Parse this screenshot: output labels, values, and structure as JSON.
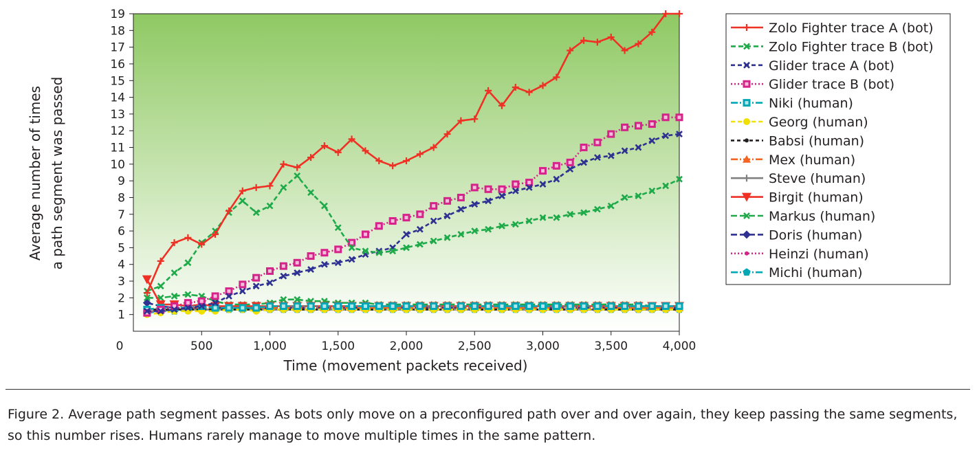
{
  "chart_data": {
    "type": "line",
    "xlabel": "Time (movement packets received)",
    "ylabel": [
      "Average number of times",
      "a path segment was passed"
    ],
    "xlim": [
      0,
      4000
    ],
    "ylim": [
      0,
      19
    ],
    "x_tick_values": [
      500,
      1000,
      1500,
      2000,
      2500,
      3000,
      3500,
      4000
    ],
    "x_tick_labels": [
      "500",
      "1,000",
      "1,500",
      "2,000",
      "2,500",
      "3,000",
      "3,500",
      "4,000"
    ],
    "x_origin_label": "0",
    "y_tick_values": [
      1,
      2,
      3,
      4,
      5,
      6,
      7,
      8,
      9,
      10,
      11,
      12,
      13,
      14,
      15,
      16,
      17,
      18,
      19
    ],
    "legend_position": "right",
    "x": [
      100,
      200,
      300,
      400,
      500,
      600,
      700,
      800,
      900,
      1000,
      1100,
      1200,
      1300,
      1400,
      1500,
      1600,
      1700,
      1800,
      1900,
      2000,
      2100,
      2200,
      2300,
      2400,
      2500,
      2600,
      2700,
      2800,
      2900,
      3000,
      3100,
      3200,
      3300,
      3400,
      3500,
      3600,
      3700,
      3800,
      3900,
      4000
    ],
    "series": [
      {
        "name": "Zolo Fighter trace A (bot)",
        "color": "#ee3124",
        "dash": "",
        "marker": "plus",
        "values": [
          2.3,
          4.2,
          5.3,
          5.6,
          5.2,
          5.8,
          7.2,
          8.4,
          8.6,
          8.7,
          10.0,
          9.8,
          10.4,
          11.1,
          10.7,
          11.5,
          10.8,
          10.2,
          9.9,
          10.2,
          10.6,
          11.0,
          11.8,
          12.6,
          12.7,
          14.4,
          13.5,
          14.6,
          14.3,
          14.7,
          15.2,
          16.8,
          17.4,
          17.3,
          17.6,
          16.8,
          17.2,
          17.9,
          19.0,
          19.0
        ]
      },
      {
        "name": "Zolo Fighter trace B (bot)",
        "color": "#1faa4a",
        "dash": "7,4",
        "marker": "x",
        "values": [
          2.4,
          2.7,
          3.5,
          4.1,
          5.3,
          6.0,
          7.1,
          7.8,
          7.1,
          7.5,
          8.6,
          9.3,
          8.3,
          7.5,
          6.2,
          5.0,
          4.8,
          4.7,
          4.8,
          5.0,
          5.2,
          5.4,
          5.6,
          5.8,
          6.0,
          6.1,
          6.3,
          6.4,
          6.6,
          6.8,
          6.8,
          7.0,
          7.1,
          7.3,
          7.5,
          8.0,
          8.1,
          8.4,
          8.7,
          9.1
        ]
      },
      {
        "name": "Glider trace A (bot)",
        "color": "#2e3192",
        "dash": "6,4",
        "marker": "x",
        "values": [
          1.2,
          1.2,
          1.3,
          1.4,
          1.5,
          1.7,
          2.1,
          2.4,
          2.7,
          2.9,
          3.3,
          3.5,
          3.7,
          4.0,
          4.1,
          4.3,
          4.6,
          4.8,
          5.0,
          5.8,
          6.1,
          6.6,
          6.9,
          7.3,
          7.6,
          7.8,
          8.1,
          8.4,
          8.6,
          8.8,
          9.1,
          9.7,
          10.1,
          10.4,
          10.5,
          10.8,
          11.0,
          11.4,
          11.7,
          11.8
        ]
      },
      {
        "name": "Glider trace B (bot)",
        "color": "#d6238a",
        "dash": "2,3",
        "marker": "square",
        "values": [
          1.1,
          1.3,
          1.5,
          1.7,
          1.8,
          2.1,
          2.4,
          2.8,
          3.2,
          3.6,
          3.9,
          4.1,
          4.5,
          4.7,
          4.9,
          5.3,
          5.8,
          6.3,
          6.6,
          6.8,
          7.0,
          7.5,
          7.8,
          8.0,
          8.6,
          8.5,
          8.5,
          8.8,
          8.9,
          9.6,
          9.9,
          10.1,
          11.0,
          11.3,
          11.8,
          12.2,
          12.3,
          12.4,
          12.8,
          12.8
        ]
      },
      {
        "name": "Niki (human)",
        "color": "#00a8b5",
        "dash": "10,3,2,3",
        "marker": "square",
        "values": [
          1.3,
          1.4,
          1.4,
          1.5,
          1.5,
          1.4,
          1.4,
          1.4,
          1.4,
          1.5,
          1.5,
          1.5,
          1.5,
          1.5,
          1.5,
          1.5,
          1.5,
          1.5,
          1.5,
          1.5,
          1.5,
          1.5,
          1.5,
          1.5,
          1.5,
          1.5,
          1.5,
          1.5,
          1.5,
          1.5,
          1.5,
          1.5,
          1.5,
          1.5,
          1.5,
          1.5,
          1.5,
          1.5,
          1.5,
          1.5
        ]
      },
      {
        "name": "Georg (human)",
        "color": "#f0e000",
        "dash": "6,4",
        "marker": "circle",
        "values": [
          1.0,
          1.1,
          1.2,
          1.2,
          1.2,
          1.2,
          1.3,
          1.3,
          1.2,
          1.3,
          1.3,
          1.3,
          1.3,
          1.3,
          1.3,
          1.3,
          1.3,
          1.3,
          1.3,
          1.3,
          1.3,
          1.3,
          1.3,
          1.3,
          1.3,
          1.3,
          1.3,
          1.3,
          1.3,
          1.3,
          1.3,
          1.3,
          1.3,
          1.3,
          1.3,
          1.3,
          1.3,
          1.3,
          1.3,
          1.3
        ]
      },
      {
        "name": "Babsi (human)",
        "color": "#231f20",
        "dash": "5,4",
        "marker": "dot",
        "values": [
          1.3,
          1.3,
          1.3,
          1.3,
          1.3,
          1.3,
          1.3,
          1.3,
          1.3,
          1.3,
          1.3,
          1.3,
          1.3,
          1.3,
          1.3,
          1.3,
          1.3,
          1.3,
          1.3,
          1.3,
          1.3,
          1.3,
          1.3,
          1.3,
          1.3,
          1.3,
          1.3,
          1.3,
          1.3,
          1.3,
          1.3,
          1.3,
          1.3,
          1.3,
          1.3,
          1.3,
          1.3,
          1.3,
          1.3,
          1.3
        ]
      },
      {
        "name": "Mex (human)",
        "color": "#f26522",
        "dash": "10,3,2,3",
        "marker": "triangle",
        "values": [
          1.3,
          1.4,
          1.4,
          1.4,
          1.4,
          1.4,
          1.4,
          1.4,
          1.4,
          1.4,
          1.4,
          1.4,
          1.4,
          1.4,
          1.4,
          1.4,
          1.4,
          1.4,
          1.4,
          1.4,
          1.4,
          1.4,
          1.4,
          1.4,
          1.4,
          1.4,
          1.4,
          1.4,
          1.4,
          1.4,
          1.4,
          1.4,
          1.4,
          1.4,
          1.4,
          1.4,
          1.4,
          1.4,
          1.4,
          1.4
        ]
      },
      {
        "name": "Steve (human)",
        "color": "#808080",
        "dash": "",
        "marker": "plus",
        "values": [
          1.2,
          1.2,
          1.3,
          1.3,
          1.3,
          1.3,
          1.3,
          1.3,
          1.3,
          1.3,
          1.3,
          1.3,
          1.3,
          1.3,
          1.3,
          1.3,
          1.3,
          1.3,
          1.3,
          1.3,
          1.3,
          1.3,
          1.3,
          1.3,
          1.3,
          1.3,
          1.3,
          1.3,
          1.3,
          1.3,
          1.3,
          1.3,
          1.3,
          1.3,
          1.3,
          1.3,
          1.3,
          1.3,
          1.3,
          1.3
        ]
      },
      {
        "name": "Birgit (human)",
        "color": "#ee3124",
        "dash": "",
        "marker": "triangle-down",
        "values": [
          3.1,
          1.6,
          1.6,
          1.5,
          1.6,
          1.5,
          1.5,
          1.5,
          1.5,
          1.5,
          1.5,
          1.5,
          1.5,
          1.5,
          1.5,
          1.5,
          1.5,
          1.5,
          1.5,
          1.5,
          1.5,
          1.5,
          1.5,
          1.5,
          1.5,
          1.5,
          1.5,
          1.5,
          1.5,
          1.5,
          1.5,
          1.5,
          1.5,
          1.5,
          1.5,
          1.5,
          1.5,
          1.5,
          1.5,
          1.5
        ]
      },
      {
        "name": "Markus (human)",
        "color": "#1faa4a",
        "dash": "9,4",
        "marker": "x",
        "values": [
          2.0,
          2.0,
          2.1,
          2.2,
          2.1,
          1.8,
          1.6,
          1.6,
          1.6,
          1.7,
          1.9,
          1.9,
          1.8,
          1.8,
          1.7,
          1.7,
          1.7,
          1.6,
          1.6,
          1.6,
          1.6,
          1.6,
          1.6,
          1.6,
          1.6,
          1.6,
          1.6,
          1.6,
          1.6,
          1.6,
          1.6,
          1.6,
          1.6,
          1.6,
          1.6,
          1.6,
          1.6,
          1.5,
          1.5,
          1.5
        ]
      },
      {
        "name": "Doris (human)",
        "color": "#2e3192",
        "dash": "9,4",
        "marker": "diamond",
        "values": [
          1.7,
          1.5,
          1.4,
          1.4,
          1.4,
          1.4,
          1.4,
          1.4,
          1.4,
          1.4,
          1.4,
          1.4,
          1.4,
          1.4,
          1.4,
          1.4,
          1.4,
          1.4,
          1.4,
          1.4,
          1.4,
          1.4,
          1.4,
          1.4,
          1.4,
          1.4,
          1.4,
          1.4,
          1.4,
          1.4,
          1.4,
          1.4,
          1.4,
          1.4,
          1.4,
          1.4,
          1.4,
          1.4,
          1.4,
          1.4
        ]
      },
      {
        "name": "Heinzi (human)",
        "color": "#d6238a",
        "dash": "2,3",
        "marker": "dot",
        "values": [
          1.2,
          1.2,
          1.3,
          1.3,
          1.3,
          1.3,
          1.3,
          1.3,
          1.3,
          1.3,
          1.3,
          1.3,
          1.3,
          1.3,
          1.3,
          1.3,
          1.3,
          1.3,
          1.3,
          1.3,
          1.3,
          1.3,
          1.3,
          1.3,
          1.3,
          1.3,
          1.3,
          1.3,
          1.3,
          1.3,
          1.3,
          1.3,
          1.3,
          1.3,
          1.3,
          1.3,
          1.3,
          1.3,
          1.3,
          1.3
        ]
      },
      {
        "name": "Michi (human)",
        "color": "#00a8b5",
        "dash": "10,3,2,3",
        "marker": "pentagon",
        "values": [
          1.1,
          1.2,
          1.2,
          1.3,
          1.3,
          1.3,
          1.3,
          1.3,
          1.3,
          1.3,
          1.3,
          1.3,
          1.3,
          1.3,
          1.3,
          1.3,
          1.3,
          1.3,
          1.3,
          1.3,
          1.3,
          1.3,
          1.3,
          1.3,
          1.3,
          1.3,
          1.3,
          1.3,
          1.3,
          1.3,
          1.3,
          1.3,
          1.3,
          1.3,
          1.3,
          1.3,
          1.3,
          1.3,
          1.3,
          1.3
        ]
      }
    ]
  },
  "caption": "Figure 2. Average path segment passes. As bots only move on a preconfigured path over and over again, they keep passing the same segments, so this number rises. Humans rarely manage to move multiple times in the same pattern.",
  "colors": {
    "plot_top": "#8fc963",
    "plot_bottom": "#ffffff",
    "frame": "#231f20"
  }
}
